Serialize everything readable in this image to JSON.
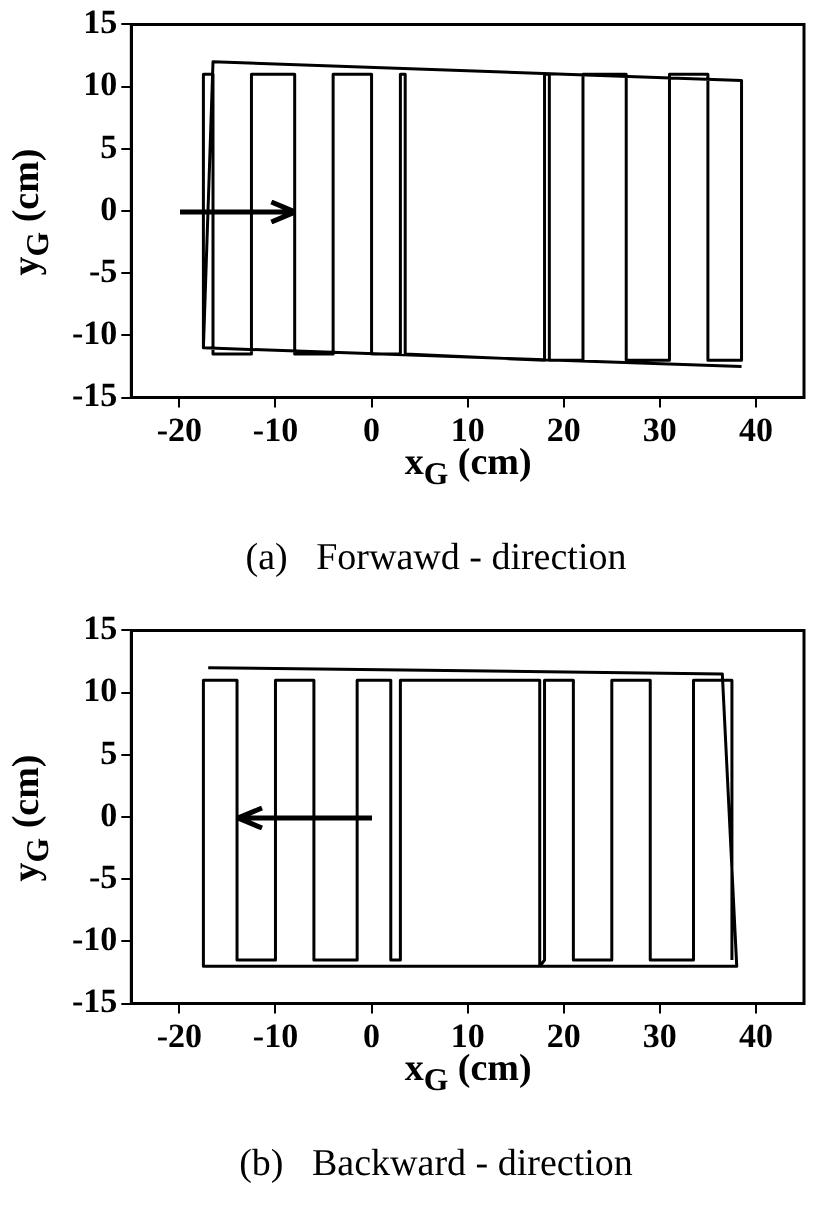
{
  "chart_data": [
    {
      "type": "line",
      "title": "(a)   Forwawd - direction",
      "xlabel": "x$_{G}$ (cm)",
      "ylabel": "y$_{G}$ (cm)",
      "xlim": [
        -25,
        45
      ],
      "ylim": [
        -15,
        15
      ],
      "xticks": [
        -20,
        -10,
        0,
        10,
        20,
        30,
        40
      ],
      "yticks": [
        -15,
        -10,
        -5,
        0,
        5,
        10,
        15
      ],
      "grid": false,
      "legend": false,
      "series": [
        {
          "color": "#000000",
          "x": [
            -17.5,
            -17.5,
            -16.5,
            -16.5,
            -12.5,
            -12.5,
            -8,
            -8,
            -4,
            -4,
            0,
            0,
            3,
            3,
            3.5,
            3.5,
            18,
            18,
            18.5,
            18.5,
            22,
            22,
            26.5,
            26.5,
            31,
            31,
            35,
            35,
            38.5,
            38.5,
            -16.5,
            -17.5,
            38.5
          ],
          "values": [
            -11,
            11,
            11,
            -11.5,
            -11.5,
            11,
            11,
            -11.5,
            -11.5,
            11,
            11,
            -11.5,
            -11.5,
            11,
            11,
            -11.5,
            -12,
            11,
            11,
            -12,
            -12,
            11,
            11,
            -12,
            -12,
            11,
            11,
            -12,
            -12,
            10.5,
            12,
            -11,
            -12.5
          ]
        }
      ]
    },
    {
      "type": "line",
      "title": "(b)   Backward - direction",
      "xlabel": "x$_{G}$ (cm)",
      "ylabel": "y$_{G}$ (cm)",
      "xlim": [
        -25,
        45
      ],
      "ylim": [
        -15,
        15
      ],
      "xticks": [
        -20,
        -10,
        0,
        10,
        20,
        30,
        40
      ],
      "yticks": [
        -15,
        -10,
        -5,
        0,
        5,
        10,
        15
      ],
      "grid": false,
      "legend": false,
      "series": [
        {
          "color": "#000000",
          "x": [
            37.5,
            37.5,
            33.5,
            33.5,
            29,
            29,
            25,
            25,
            21,
            21,
            18,
            18,
            17.5,
            17.5,
            3,
            3,
            2,
            2,
            -1.5,
            -1.5,
            -6,
            -6,
            -10,
            -10,
            -14,
            -14,
            -17.5,
            -17.5,
            38,
            36.5,
            -17
          ],
          "values": [
            -11.5,
            11,
            11,
            -11.5,
            -11.5,
            11,
            11,
            -11.5,
            -11.5,
            11,
            11,
            -11.5,
            -12,
            11,
            11,
            -11.5,
            -11.5,
            11,
            11,
            -11.5,
            -11.5,
            11,
            11,
            -11.5,
            -11.5,
            11,
            11,
            -12,
            -12,
            11.5,
            12
          ]
        }
      ]
    }
  ]
}
